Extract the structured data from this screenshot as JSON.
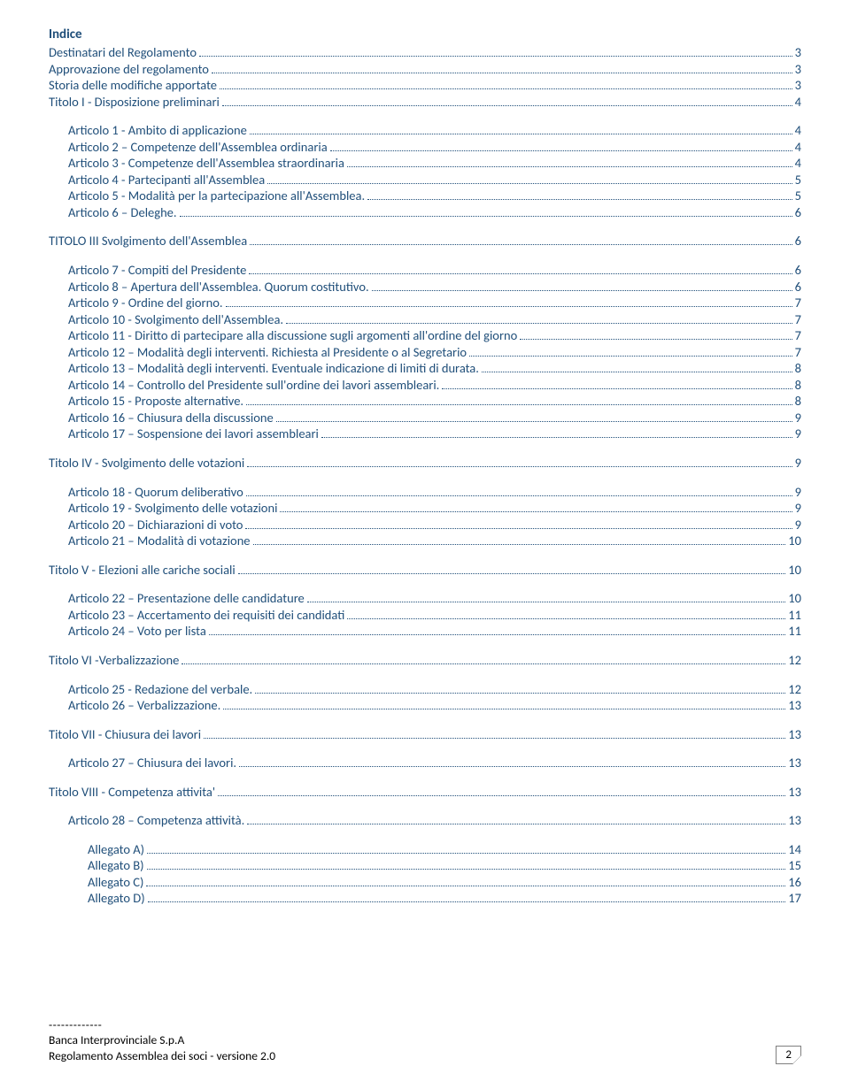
{
  "colors": {
    "link": "#1f4e79",
    "text": "#000000",
    "border": "#7f7f7f",
    "background": "#ffffff"
  },
  "typography": {
    "family": "Calibri",
    "toc_fontsize_pt": 11,
    "title_weight": "bold"
  },
  "title": "Indice",
  "toc": [
    {
      "label": "Destinatari del Regolamento",
      "page": "3",
      "indent": 0
    },
    {
      "label": "Approvazione del regolamento",
      "page": "3",
      "indent": 0
    },
    {
      "label": "Storia delle modifiche apportate",
      "page": "3",
      "indent": 0
    },
    {
      "label": "Titolo I - Disposizione preliminari",
      "page": "4",
      "indent": 0
    },
    {
      "spacer": true
    },
    {
      "label": "Articolo 1 - Ambito di applicazione",
      "page": "4",
      "indent": 1
    },
    {
      "label": "Articolo 2 – Competenze dell'Assemblea ordinaria",
      "page": "4",
      "indent": 1
    },
    {
      "label": "Articolo 3 - Competenze dell'Assemblea straordinaria",
      "page": "4",
      "indent": 1
    },
    {
      "label": "Articolo 4 - Partecipanti all'Assemblea",
      "page": "5",
      "indent": 1
    },
    {
      "label": "Articolo 5 - Modalità per la partecipazione all'Assemblea.",
      "page": "5",
      "indent": 1
    },
    {
      "label": "Articolo 6 – Deleghe.",
      "page": "6",
      "indent": 1
    },
    {
      "spacer": true
    },
    {
      "label": "TITOLO III Svolgimento dell'Assemblea",
      "page": "6",
      "indent": 0
    },
    {
      "spacer": true
    },
    {
      "label": "Articolo 7 - Compiti del Presidente",
      "page": "6",
      "indent": 1
    },
    {
      "label": "Articolo 8 – Apertura dell'Assemblea. Quorum costitutivo.",
      "page": "6",
      "indent": 1
    },
    {
      "label": "Articolo 9 - Ordine del giorno.",
      "page": "7",
      "indent": 1
    },
    {
      "label": "Articolo 10 - Svolgimento dell'Assemblea.",
      "page": "7",
      "indent": 1
    },
    {
      "label": "Articolo 11 - Diritto di partecipare alla discussione sugli argomenti all'ordine del giorno",
      "page": "7",
      "indent": 1
    },
    {
      "label": "Articolo 12 – Modalità degli interventi. Richiesta al Presidente o al Segretario",
      "page": "7",
      "indent": 1
    },
    {
      "label": "Articolo 13 – Modalità degli interventi. Eventuale indicazione di limiti di durata.",
      "page": "8",
      "indent": 1
    },
    {
      "label": "Articolo 14 – Controllo del Presidente sull'ordine dei lavori assembleari.",
      "page": "8",
      "indent": 1
    },
    {
      "label": "Articolo 15 - Proposte alternative.",
      "page": "8",
      "indent": 1
    },
    {
      "label": "Articolo 16 – Chiusura della discussione",
      "page": "9",
      "indent": 1
    },
    {
      "label": "Articolo 17 – Sospensione dei lavori assembleari",
      "page": "9",
      "indent": 1
    },
    {
      "spacer": true
    },
    {
      "label": "Titolo IV - Svolgimento delle votazioni",
      "page": "9",
      "indent": 0
    },
    {
      "spacer": true
    },
    {
      "label": "Articolo 18 - Quorum  deliberativo",
      "page": "9",
      "indent": 1
    },
    {
      "label": "Articolo 19 - Svolgimento delle votazioni",
      "page": "9",
      "indent": 1
    },
    {
      "label": "Articolo 20 – Dichiarazioni di voto",
      "page": "9",
      "indent": 1
    },
    {
      "label": "Articolo 21 – Modalità di votazione",
      "page": "10",
      "indent": 1
    },
    {
      "spacer": true
    },
    {
      "label": "Titolo V - Elezioni alle cariche sociali",
      "page": "10",
      "indent": 0
    },
    {
      "spacer": true
    },
    {
      "label": "Articolo 22 – Presentazione delle candidature",
      "page": "10",
      "indent": 1
    },
    {
      "label": "Articolo 23 – Accertamento dei requisiti dei candidati",
      "page": "11",
      "indent": 1
    },
    {
      "label": "Articolo 24 – Voto per lista",
      "page": "11",
      "indent": 1
    },
    {
      "spacer": true
    },
    {
      "label": "Titolo VI -Verbalizzazione",
      "page": "12",
      "indent": 0
    },
    {
      "spacer": true
    },
    {
      "label": "Articolo 25 - Redazione del verbale.",
      "page": "12",
      "indent": 1
    },
    {
      "label": "Articolo 26 – Verbalizzazione.",
      "page": "13",
      "indent": 1
    },
    {
      "spacer": true
    },
    {
      "label": "Titolo VII - Chiusura dei lavori",
      "page": "13",
      "indent": 0
    },
    {
      "spacer": true
    },
    {
      "label": "Articolo 27 – Chiusura dei lavori.",
      "page": "13",
      "indent": 1
    },
    {
      "spacer": true
    },
    {
      "label": "Titolo VIII - Competenza attivita'",
      "page": "13",
      "indent": 0
    },
    {
      "spacer": true
    },
    {
      "label": "Articolo 28 – Competenza attività.",
      "page": "13",
      "indent": 1
    },
    {
      "spacer": true
    },
    {
      "label": "Allegato A)",
      "page": "14",
      "indent": 2
    },
    {
      "label": "Allegato B)",
      "page": "15",
      "indent": 2
    },
    {
      "label": "Allegato C)",
      "page": "16",
      "indent": 2
    },
    {
      "label": "Allegato D)",
      "page": "17",
      "indent": 2
    }
  ],
  "footer": {
    "dashes": "-------------",
    "line1": "Banca Interprovinciale S.p.A",
    "line2": "Regolamento Assemblea dei soci    -   versione 2.0",
    "page_number": "2"
  }
}
